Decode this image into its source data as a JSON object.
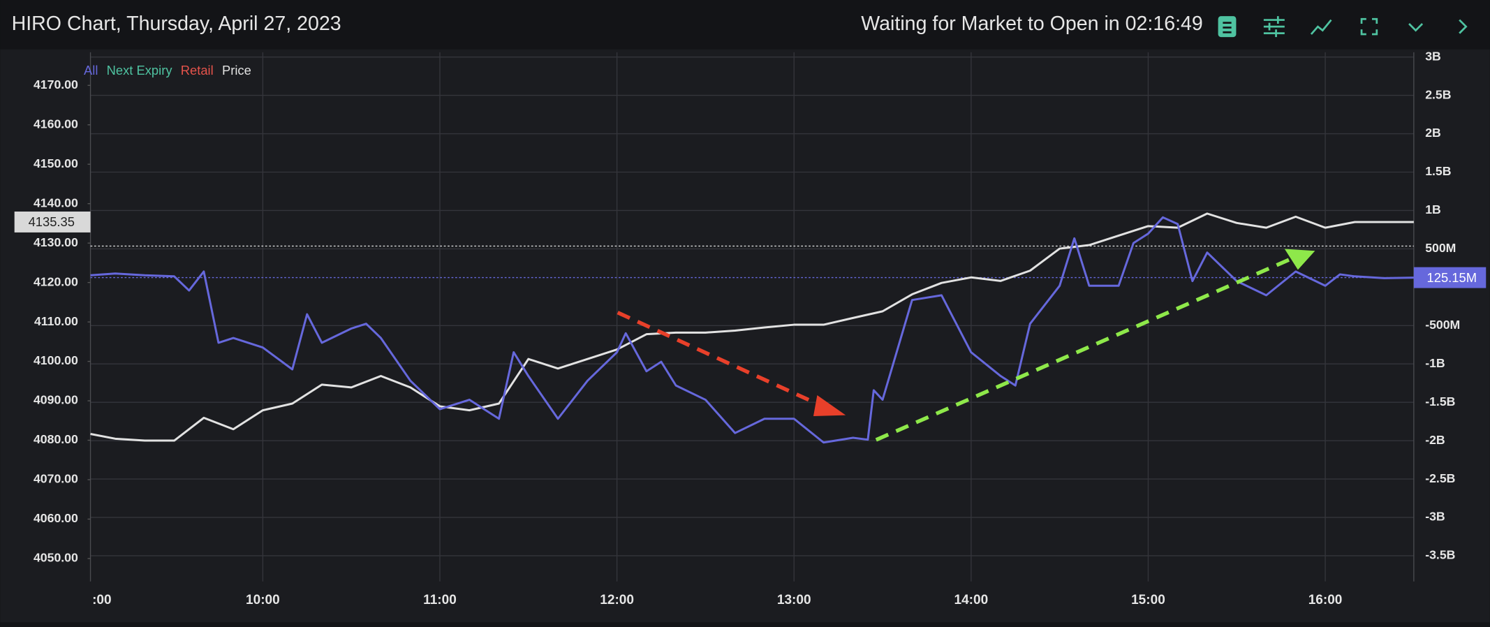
{
  "header": {
    "title": "HIRO Chart, Thursday, April 27, 2023",
    "status": "Waiting for Market to Open in 02:16:49"
  },
  "chart_data": {
    "type": "line",
    "xlim": [
      541.6,
      990
    ],
    "xticks": [
      {
        "value": 540,
        "label": ":00"
      },
      {
        "value": 600,
        "label": "10:00"
      },
      {
        "value": 660,
        "label": "11:00"
      },
      {
        "value": 720,
        "label": "12:00"
      },
      {
        "value": 780,
        "label": "13:00"
      },
      {
        "value": 840,
        "label": "14:00"
      },
      {
        "value": 900,
        "label": "15:00"
      },
      {
        "value": 960,
        "label": "16:00"
      }
    ],
    "ylim": [
      4044.2,
      4178.4
    ],
    "yticks": [
      {
        "value": 4050,
        "label": "4050.00"
      },
      {
        "value": 4060,
        "label": "4060.00"
      },
      {
        "value": 4070,
        "label": "4070.00"
      },
      {
        "value": 4080,
        "label": "4080.00"
      },
      {
        "value": 4090,
        "label": "4090.00"
      },
      {
        "value": 4100,
        "label": "4100.00"
      },
      {
        "value": 4110,
        "label": "4110.00"
      },
      {
        "value": 4120,
        "label": "4120.00"
      },
      {
        "value": 4130,
        "label": "4130.00"
      },
      {
        "value": 4140,
        "label": "4140.00"
      },
      {
        "value": 4150,
        "label": "4150.00"
      },
      {
        "value": 4160,
        "label": "4160.00"
      },
      {
        "value": 4170,
        "label": "4170.00"
      }
    ],
    "y2lim": [
      -3834,
      3062
    ],
    "y2ticks": [
      {
        "value": -3500,
        "label": "-3.5B"
      },
      {
        "value": -3000,
        "label": "-3B"
      },
      {
        "value": -2500,
        "label": "-2.5B"
      },
      {
        "value": -2000,
        "label": "-2B"
      },
      {
        "value": -1500,
        "label": "-1.5B"
      },
      {
        "value": -1000,
        "label": "-1B"
      },
      {
        "value": -500,
        "label": "-500M"
      },
      {
        "value": 500,
        "label": "500M"
      },
      {
        "value": 1000,
        "label": "1B"
      },
      {
        "value": 1500,
        "label": "1.5B"
      },
      {
        "value": 2000,
        "label": "2B"
      },
      {
        "value": 2500,
        "label": "2.5B"
      },
      {
        "value": 3000,
        "label": "3B"
      }
    ],
    "grid": true,
    "price_label": {
      "value": 4135.35,
      "label": "4135.35"
    },
    "flow_label": {
      "value": 125.15,
      "label": "125.15M"
    },
    "series": [
      {
        "name": "All",
        "color": "#6668dc",
        "axis": "y2",
        "x": [
          541.6,
          550,
          560,
          570,
          575,
          580,
          585,
          590,
          600,
          610,
          615,
          620,
          630,
          635,
          640,
          650,
          660,
          670,
          680,
          685,
          690,
          700,
          710,
          720,
          723,
          730,
          735,
          740,
          750,
          760,
          770,
          780,
          790,
          800,
          805,
          807,
          810,
          820,
          830,
          840,
          850,
          855,
          860,
          870,
          875,
          880,
          890,
          895,
          900,
          905,
          910,
          915,
          920,
          930,
          940,
          950,
          960,
          965,
          970,
          980,
          990
        ],
        "values": [
          155,
          179,
          155,
          142,
          -43,
          204,
          -724,
          -662,
          -786,
          -1071,
          -353,
          -724,
          -538,
          -476,
          -662,
          -1219,
          -1590,
          -1467,
          -1714,
          -848,
          -1157,
          -1714,
          -1219,
          -848,
          -600,
          -1095,
          -972,
          -1281,
          -1467,
          -1900,
          -1714,
          -1714,
          -2024,
          -1962,
          -1987,
          -1343,
          -1467,
          -167,
          -105,
          -848,
          -1157,
          -1281,
          -476,
          19,
          637,
          19,
          19,
          575,
          699,
          910,
          823,
          80,
          452,
          80,
          -105,
          204,
          19,
          167,
          142,
          118,
          125.15
        ]
      },
      {
        "name": "Next Expiry",
        "color": "#4fc3a1",
        "x": [],
        "values": []
      },
      {
        "name": "Retail",
        "color": "#e5534b",
        "x": [],
        "values": []
      },
      {
        "name": "Price",
        "color": "#e2e2e2",
        "axis": "y",
        "x": [
          541.6,
          550,
          560,
          570,
          580,
          590,
          600,
          610,
          620,
          630,
          640,
          650,
          660,
          670,
          680,
          690,
          700,
          710,
          720,
          730,
          740,
          750,
          760,
          770,
          780,
          790,
          800,
          810,
          820,
          830,
          840,
          850,
          860,
          870,
          880,
          890,
          900,
          910,
          920,
          930,
          940,
          950,
          960,
          970,
          990
        ],
        "values": [
          4081.6,
          4080.4,
          4079.9,
          4079.9,
          4085.7,
          4082.8,
          4087.6,
          4089.3,
          4094.1,
          4093.4,
          4096.3,
          4093.4,
          4088.6,
          4087.6,
          4089.3,
          4100.6,
          4098.2,
          4100.6,
          4103,
          4106.9,
          4107.3,
          4107.3,
          4107.8,
          4108.6,
          4109.3,
          4109.3,
          4111,
          4112.7,
          4117,
          4119.9,
          4121.3,
          4120.4,
          4123,
          4128.6,
          4129.5,
          4131.9,
          4134.3,
          4133.9,
          4137.5,
          4135.1,
          4133.9,
          4136.7,
          4133.9,
          4135.35,
          4135.35
        ]
      }
    ]
  }
}
